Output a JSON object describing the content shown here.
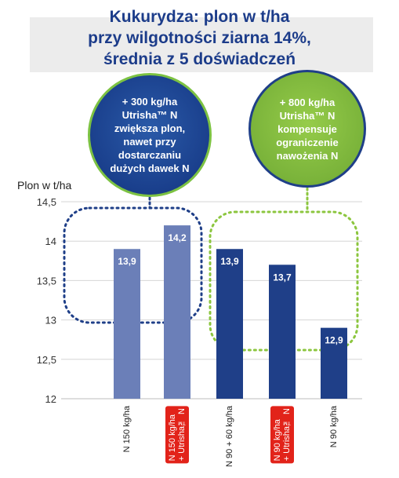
{
  "title": {
    "line1": "Kukurydza: plon w t/ha",
    "line2": "przy wilgotności ziarna 14%,",
    "line3": "średnia z 5 doświadczeń"
  },
  "bubbles": {
    "left": {
      "lines": [
        "+ 300 kg/ha",
        "Utrisha™ N",
        "zwiększa plon,",
        "nawet przy",
        "dostarczaniu",
        "dużych dawek N"
      ],
      "color": "#1a3f8c"
    },
    "right": {
      "lines": [
        "+ 800 kg/ha",
        "Utrisha™ N",
        "kompensuje",
        "ograniczenie",
        "nawożenia N"
      ],
      "color": "#7ab33a"
    }
  },
  "chart_data": {
    "type": "bar",
    "ylabel": "Plon w t/ha",
    "ylim": [
      12,
      14.5
    ],
    "yticks": [
      "12",
      "12,5",
      "13",
      "13,5",
      "14",
      "14,5"
    ],
    "categories": [
      {
        "lines": [
          "N 150 kg/ha"
        ],
        "highlight": false
      },
      {
        "lines": [
          "N 150 kg/ha",
          "+ Utrisha™ N"
        ],
        "highlight": true
      },
      {
        "lines": [
          "N 90 + 60 kg/ha"
        ],
        "highlight": false
      },
      {
        "lines": [
          "N 90 kg/ha",
          "+ Utrisha™ N"
        ],
        "highlight": true
      },
      {
        "lines": [
          "N 90 kg/ha"
        ],
        "highlight": false
      }
    ],
    "values": [
      13.9,
      14.2,
      13.9,
      13.7,
      12.9
    ],
    "value_labels": [
      "13,9",
      "14,2",
      "13,9",
      "13,7",
      "12,9"
    ],
    "bar_colors": [
      "#6b7fb8",
      "#6b7fb8",
      "#1f3f88",
      "#1f3f88",
      "#1f3f88"
    ],
    "highlight_color": "#e2231a",
    "group_outline_colors": [
      "#1f3f88",
      "#8cc63f"
    ],
    "grid": true
  }
}
